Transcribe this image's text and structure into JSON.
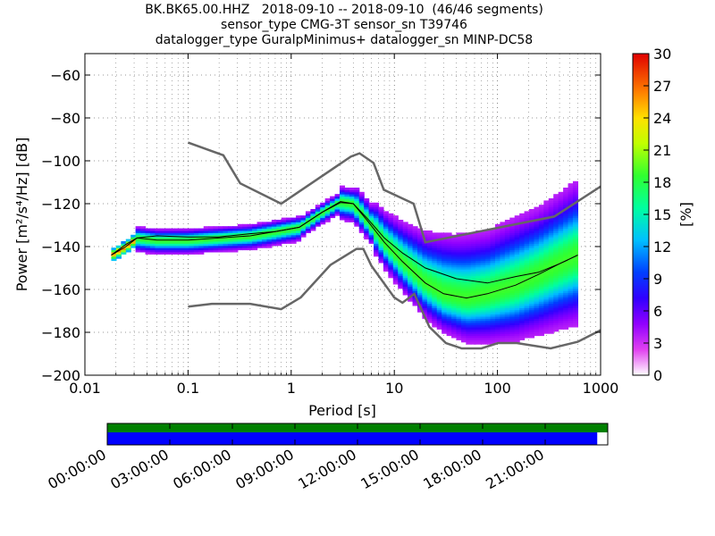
{
  "title": {
    "line1": "BK.BK65.00.HHZ   2018-09-10 -- 2018-09-10  (46/46 segments)",
    "line2": "sensor_type CMG-3T sensor_sn T39746",
    "line3": "datalogger_type GuralpMinimus+ datalogger_sn MINP-DC58"
  },
  "chart_data": [
    {
      "type": "heatmap",
      "xlabel": "Period [s]",
      "ylabel": "Power [m²/s⁴/Hz] [dB]",
      "xscale": "log",
      "xlim": [
        0.01,
        1000
      ],
      "ylim": [
        -200,
        -50
      ],
      "x_ticks": [
        {
          "value": 0.01,
          "label": "0.01"
        },
        {
          "value": 0.1,
          "label": "0.1"
        },
        {
          "value": 1,
          "label": "1"
        },
        {
          "value": 10,
          "label": "10"
        },
        {
          "value": 100,
          "label": "100"
        },
        {
          "value": 1000,
          "label": "1000"
        }
      ],
      "y_ticks": [
        {
          "value": -60,
          "label": "−60"
        },
        {
          "value": -80,
          "label": "−80"
        },
        {
          "value": -100,
          "label": "−100"
        },
        {
          "value": -120,
          "label": "−120"
        },
        {
          "value": -140,
          "label": "−140"
        },
        {
          "value": -160,
          "label": "−160"
        },
        {
          "value": -180,
          "label": "−180"
        },
        {
          "value": -200,
          "label": "−200"
        }
      ],
      "grid": true,
      "colorbar": {
        "label": "[%]",
        "min": 0,
        "max": 30,
        "ticks": [
          "0",
          "3",
          "6",
          "9",
          "12",
          "15",
          "18",
          "21",
          "24",
          "27",
          "30"
        ]
      },
      "series": [
        {
          "role": "high-noise-model",
          "color": "#666666",
          "points": [
            [
              0.1,
              -91.5
            ],
            [
              0.22,
              -97.4
            ],
            [
              0.32,
              -110.5
            ],
            [
              0.8,
              -120
            ],
            [
              3.8,
              -98
            ],
            [
              4.6,
              -96.5
            ],
            [
              6.3,
              -101
            ],
            [
              7.9,
              -113.5
            ],
            [
              15.4,
              -120
            ],
            [
              20,
              -138
            ],
            [
              354.8,
              -126
            ],
            [
              1000,
              -112
            ]
          ]
        },
        {
          "role": "low-noise-model",
          "color": "#666666",
          "points": [
            [
              0.1,
              -168
            ],
            [
              0.17,
              -166.7
            ],
            [
              0.4,
              -166.7
            ],
            [
              0.8,
              -169.2
            ],
            [
              1.24,
              -163.7
            ],
            [
              2.4,
              -148.6
            ],
            [
              4.3,
              -141.1
            ],
            [
              5,
              -141.1
            ],
            [
              6,
              -149
            ],
            [
              10,
              -163.8
            ],
            [
              12,
              -166.2
            ],
            [
              15.6,
              -162.1
            ],
            [
              21.9,
              -177.5
            ],
            [
              31.6,
              -185
            ],
            [
              45,
              -187.5
            ],
            [
              70,
              -187.5
            ],
            [
              101,
              -185
            ],
            [
              154,
              -185
            ],
            [
              328,
              -187.5
            ],
            [
              600,
              -184.4
            ],
            [
              1000,
              -179
            ]
          ]
        },
        {
          "role": "mean-psd",
          "color": "#000000",
          "points": [
            [
              0.018,
              -144
            ],
            [
              0.025,
              -139
            ],
            [
              0.032,
              -136
            ],
            [
              0.05,
              -135
            ],
            [
              0.1,
              -135.5
            ],
            [
              0.2,
              -135.5
            ],
            [
              0.4,
              -134
            ],
            [
              0.7,
              -133
            ],
            [
              1.2,
              -131
            ],
            [
              2,
              -124
            ],
            [
              3,
              -119.5
            ],
            [
              4,
              -120
            ],
            [
              5.5,
              -127
            ],
            [
              8,
              -136
            ],
            [
              12,
              -143
            ],
            [
              20,
              -150
            ],
            [
              40,
              -155
            ],
            [
              80,
              -157
            ],
            [
              150,
              -154
            ],
            [
              250,
              -152
            ],
            [
              400,
              -148
            ],
            [
              600,
              -144
            ]
          ]
        },
        {
          "role": "mode-psd",
          "color": "#000000",
          "points": [
            [
              0.018,
              -144
            ],
            [
              0.025,
              -140
            ],
            [
              0.032,
              -136
            ],
            [
              0.05,
              -137
            ],
            [
              0.1,
              -137
            ],
            [
              0.2,
              -136
            ],
            [
              0.4,
              -135
            ],
            [
              0.7,
              -133
            ],
            [
              1.2,
              -131
            ],
            [
              2,
              -124
            ],
            [
              3,
              -119
            ],
            [
              4,
              -120
            ],
            [
              5.5,
              -128
            ],
            [
              8,
              -138
            ],
            [
              12,
              -147
            ],
            [
              20,
              -157
            ],
            [
              30,
              -162
            ],
            [
              50,
              -164
            ],
            [
              80,
              -162
            ],
            [
              150,
              -158
            ],
            [
              250,
              -153
            ],
            [
              400,
              -148
            ],
            [
              600,
              -144
            ]
          ]
        }
      ]
    },
    {
      "type": "bar",
      "role": "data-availability",
      "x_ticks": [
        "00:00:00",
        "03:00:00",
        "06:00:00",
        "09:00:00",
        "12:00:00",
        "15:00:00",
        "18:00:00",
        "21:00:00"
      ],
      "tracks": [
        {
          "role": "data-coverage",
          "color": "#008000",
          "fraction": 1.0
        },
        {
          "role": "psd-coverage",
          "color": "#0000ff",
          "fraction": 0.979
        }
      ]
    }
  ]
}
